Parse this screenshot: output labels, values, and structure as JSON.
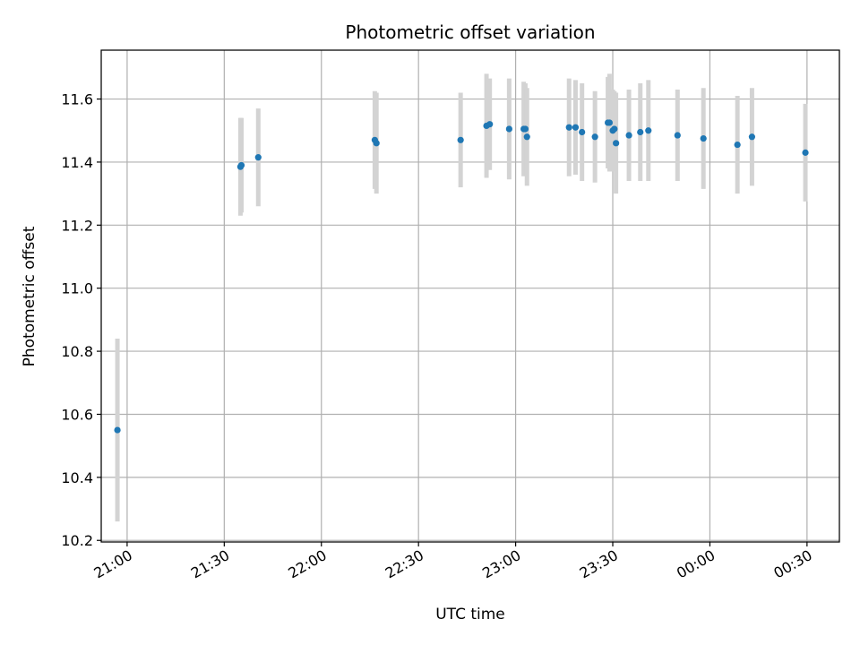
{
  "chart_data": {
    "type": "scatter",
    "title": "Photometric offset variation",
    "xlabel": "UTC time",
    "ylabel": "Photometric offset",
    "x_axis": {
      "kind": "time",
      "range": [
        "20:52",
        "00:40"
      ],
      "ticks": [
        "21:00",
        "21:30",
        "22:00",
        "22:30",
        "23:00",
        "23:30",
        "00:00",
        "00:30"
      ]
    },
    "y_axis": {
      "range": [
        10.195,
        11.755
      ],
      "ticks": [
        "10.2",
        "10.4",
        "10.6",
        "10.8",
        "11.0",
        "11.2",
        "11.4",
        "11.6"
      ]
    },
    "grid": true,
    "colors": {
      "point": "#1f77b4",
      "errorbar": "#d3d3d3",
      "grid": "#b0b0b0"
    },
    "series": [
      {
        "points": [
          {
            "x": "20:57",
            "y": 10.55,
            "yerr": 0.29
          },
          {
            "x": "21:35",
            "y": 11.385,
            "yerr": 0.155
          },
          {
            "x": "21:35.3",
            "y": 11.39,
            "yerr": 0.15
          },
          {
            "x": "21:40.5",
            "y": 11.415,
            "yerr": 0.155
          },
          {
            "x": "22:16.5",
            "y": 11.47,
            "yerr": 0.155
          },
          {
            "x": "22:17",
            "y": 11.46,
            "yerr": 0.16
          },
          {
            "x": "22:43",
            "y": 11.47,
            "yerr": 0.15
          },
          {
            "x": "22:51",
            "y": 11.515,
            "yerr": 0.165
          },
          {
            "x": "22:52",
            "y": 11.52,
            "yerr": 0.145
          },
          {
            "x": "22:58",
            "y": 11.505,
            "yerr": 0.16
          },
          {
            "x": "23:02.5",
            "y": 11.505,
            "yerr": 0.15
          },
          {
            "x": "23:03",
            "y": 11.505,
            "yerr": 0.145
          },
          {
            "x": "23:03.5",
            "y": 11.48,
            "yerr": 0.155
          },
          {
            "x": "23:16.5",
            "y": 11.51,
            "yerr": 0.155
          },
          {
            "x": "23:18.5",
            "y": 11.51,
            "yerr": 0.15
          },
          {
            "x": "23:20.5",
            "y": 11.495,
            "yerr": 0.155
          },
          {
            "x": "23:24.5",
            "y": 11.48,
            "yerr": 0.145
          },
          {
            "x": "23:28.5",
            "y": 11.525,
            "yerr": 0.145
          },
          {
            "x": "23:29",
            "y": 11.525,
            "yerr": 0.155
          },
          {
            "x": "23:30",
            "y": 11.5,
            "yerr": 0.13
          },
          {
            "x": "23:30.5",
            "y": 11.505,
            "yerr": 0.12
          },
          {
            "x": "23:31",
            "y": 11.46,
            "yerr": 0.16
          },
          {
            "x": "23:35",
            "y": 11.485,
            "yerr": 0.145
          },
          {
            "x": "23:38.5",
            "y": 11.495,
            "yerr": 0.155
          },
          {
            "x": "23:41",
            "y": 11.5,
            "yerr": 0.16
          },
          {
            "x": "23:50",
            "y": 11.485,
            "yerr": 0.145
          },
          {
            "x": "23:58",
            "y": 11.475,
            "yerr": 0.16
          },
          {
            "x": "00:08.5",
            "y": 11.455,
            "yerr": 0.155
          },
          {
            "x": "00:13",
            "y": 11.48,
            "yerr": 0.155
          },
          {
            "x": "00:29.5",
            "y": 11.43,
            "yerr": 0.155
          }
        ]
      }
    ]
  }
}
